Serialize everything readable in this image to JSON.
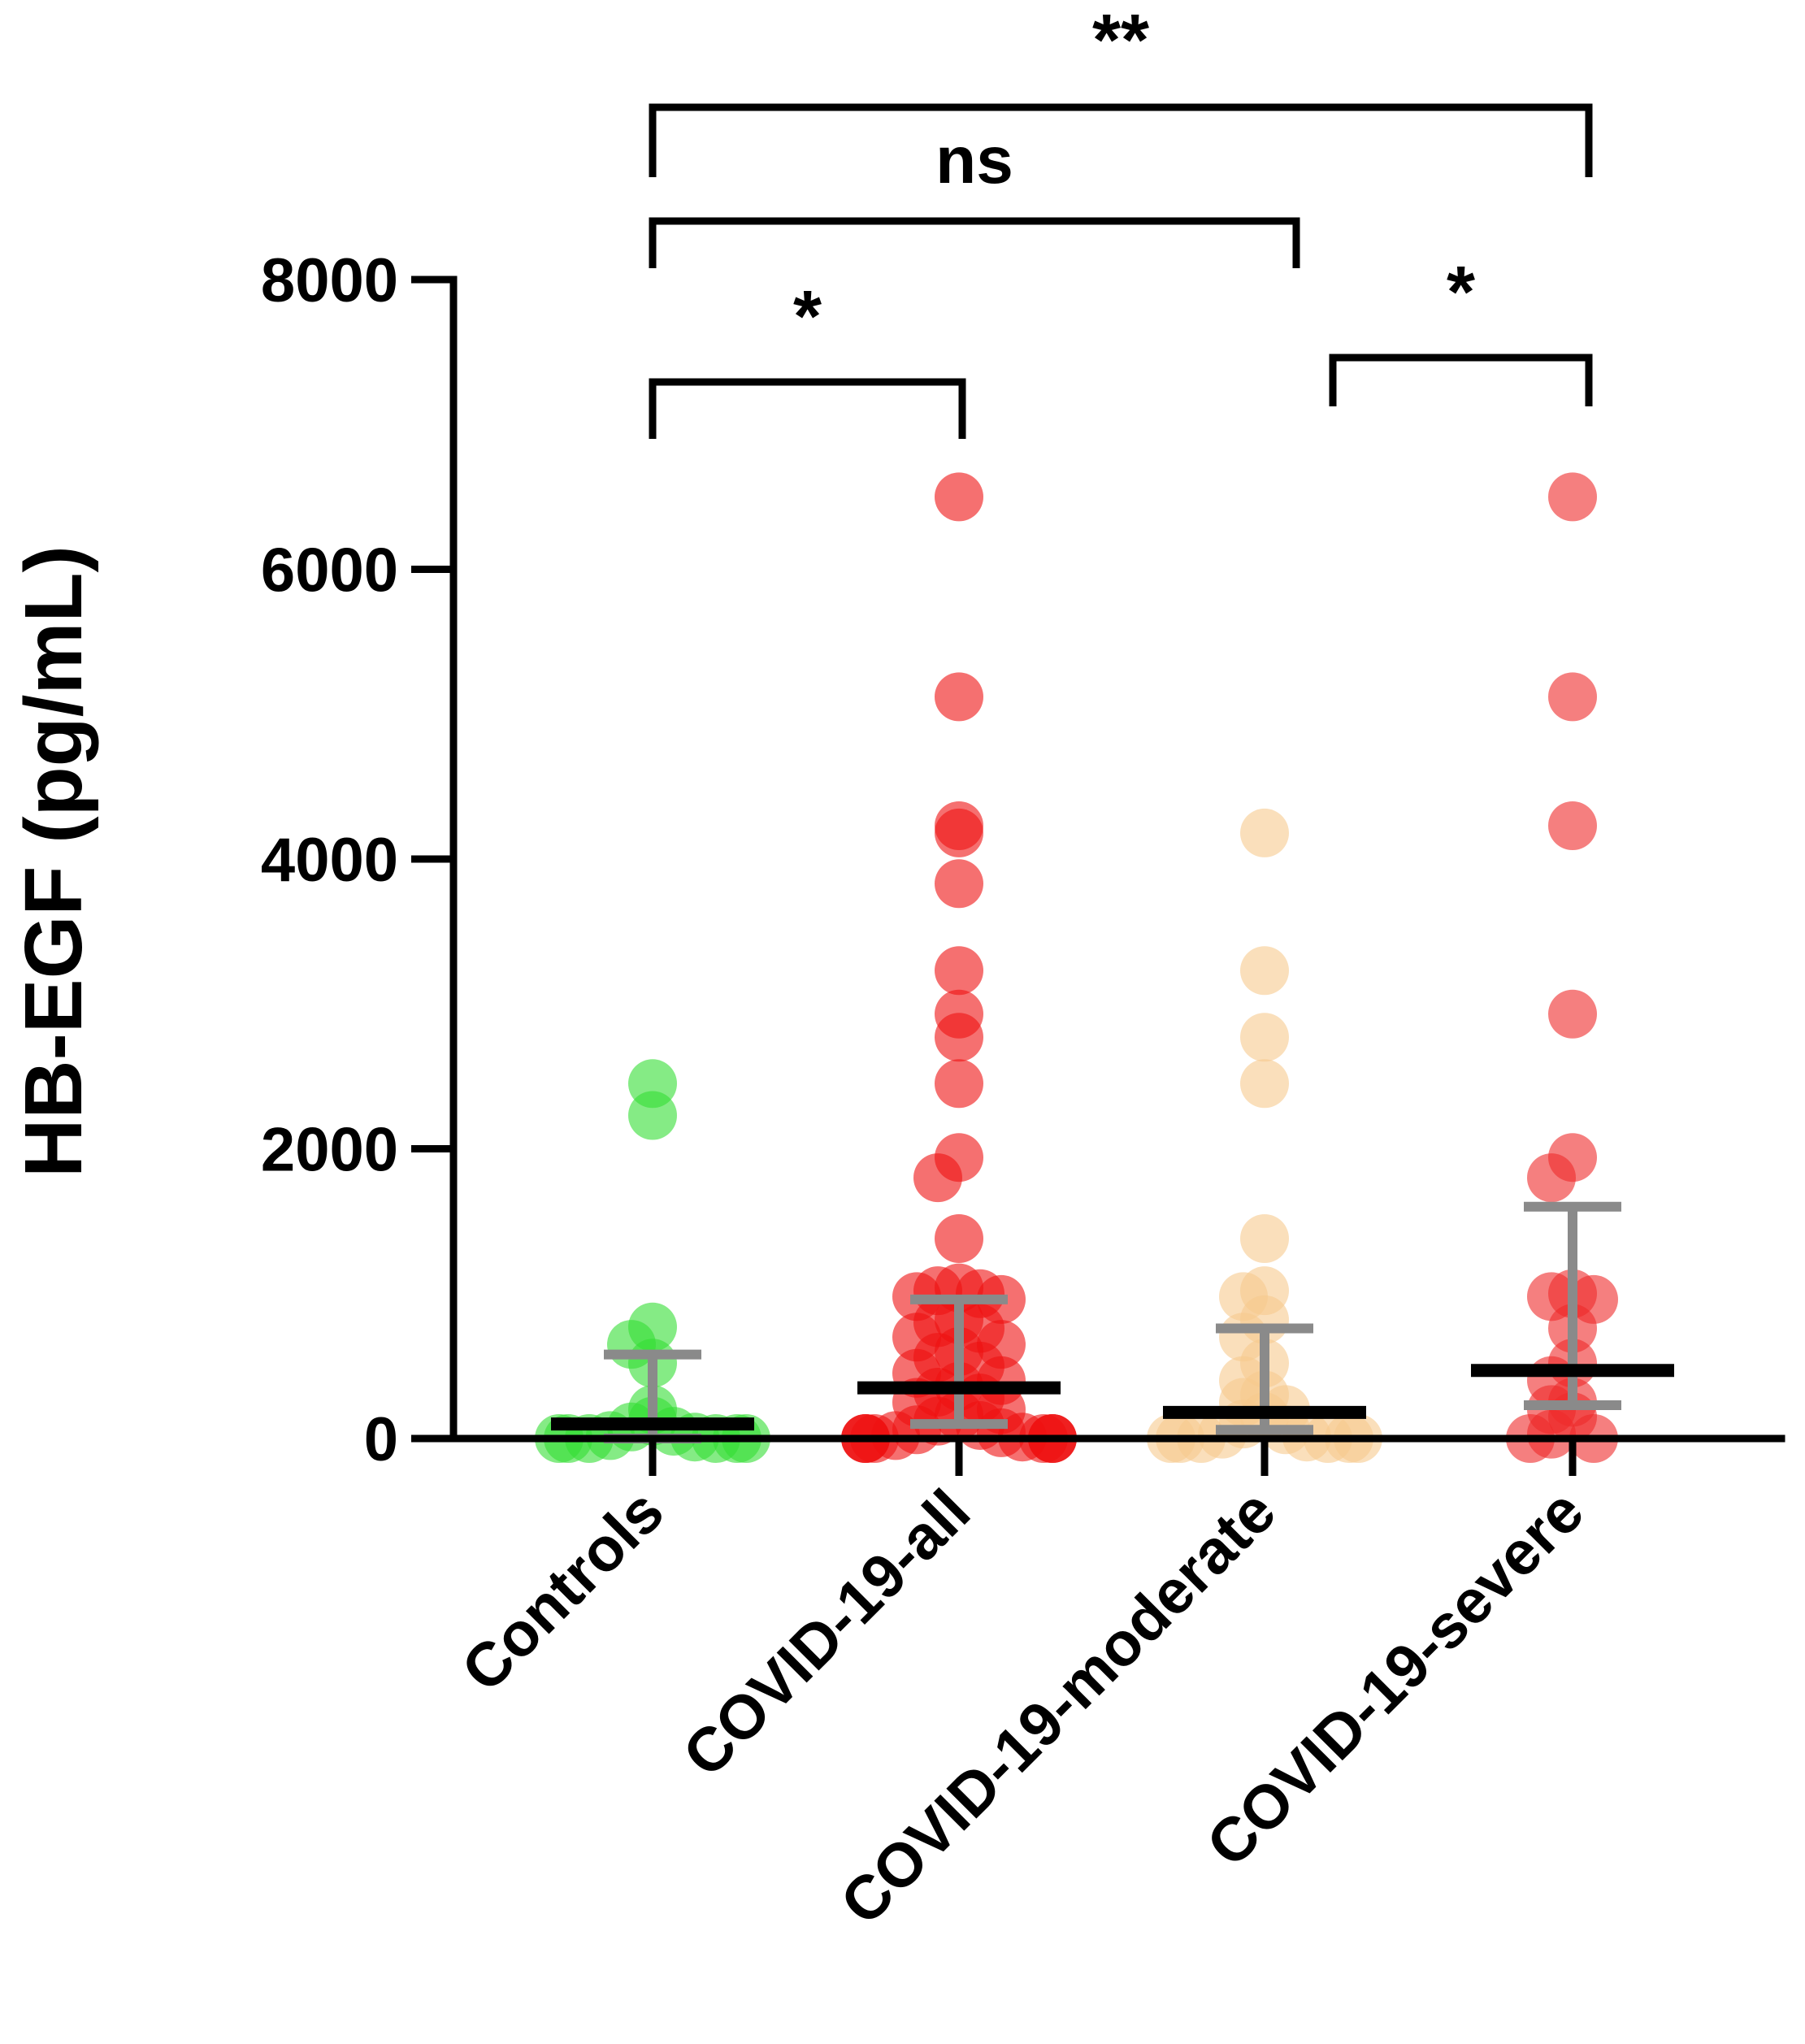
{
  "chart_data": {
    "type": "scatter",
    "title": "",
    "xlabel": "",
    "ylabel": "HB-EGF (pg/mL)",
    "ylim": [
      0,
      8000
    ],
    "yticks": [
      0,
      2000,
      4000,
      6000,
      8000
    ],
    "ytick_labels": [
      "0",
      "2000",
      "4000",
      "6000",
      "8000"
    ],
    "categories": [
      "Controls",
      "COVID-19-all",
      "COVID-19-moderate",
      "COVID-19-severe"
    ],
    "colors": {
      "Controls": "#33dd33",
      "COVID-19-all": "#ee1111",
      "COVID-19-moderate": "#f7c98e",
      "COVID-19-severe": "#ee2a2a",
      "axis": "#000000",
      "iqr": "#8a8a8a",
      "median": "#000000"
    },
    "series": [
      {
        "name": "Controls",
        "median": 100,
        "q1": 0,
        "q3": 580,
        "points": [
          2450,
          2230,
          770,
          650,
          520,
          200,
          120,
          80,
          50,
          20,
          10,
          0,
          0,
          0,
          0,
          0,
          0
        ]
      },
      {
        "name": "COVID-19-all",
        "median": 350,
        "q1": 100,
        "q3": 960,
        "points": [
          6500,
          5120,
          4230,
          4180,
          3830,
          3230,
          2930,
          2770,
          2450,
          1940,
          1800,
          1380,
          1040,
          1020,
          1000,
          980,
          960,
          820,
          800,
          760,
          700,
          650,
          600,
          560,
          500,
          450,
          400,
          360,
          320,
          280,
          250,
          200,
          160,
          120,
          90,
          60,
          40,
          20,
          10,
          0,
          0,
          0,
          0,
          0,
          0,
          0,
          0
        ]
      },
      {
        "name": "COVID-19-moderate",
        "median": 180,
        "q1": 60,
        "q3": 760,
        "points": [
          4180,
          3230,
          2770,
          2450,
          1380,
          1020,
          980,
          820,
          700,
          520,
          400,
          300,
          250,
          200,
          150,
          100,
          60,
          30,
          10,
          0,
          0,
          0,
          0,
          0,
          0
        ]
      },
      {
        "name": "COVID-19-severe",
        "median": 470,
        "q1": 230,
        "q3": 1600,
        "points": [
          6500,
          5120,
          4230,
          2930,
          1940,
          1800,
          1000,
          980,
          960,
          760,
          520,
          400,
          250,
          200,
          150,
          30,
          0,
          0
        ]
      }
    ],
    "comparisons": [
      {
        "groups": [
          "Controls",
          "COVID-19-all"
        ],
        "label": "*"
      },
      {
        "groups": [
          "COVID-19-moderate",
          "COVID-19-severe"
        ],
        "label": "*"
      },
      {
        "groups": [
          "Controls",
          "COVID-19-moderate"
        ],
        "label": "ns"
      },
      {
        "groups": [
          "Controls",
          "COVID-19-severe"
        ],
        "label": "**"
      }
    ]
  }
}
